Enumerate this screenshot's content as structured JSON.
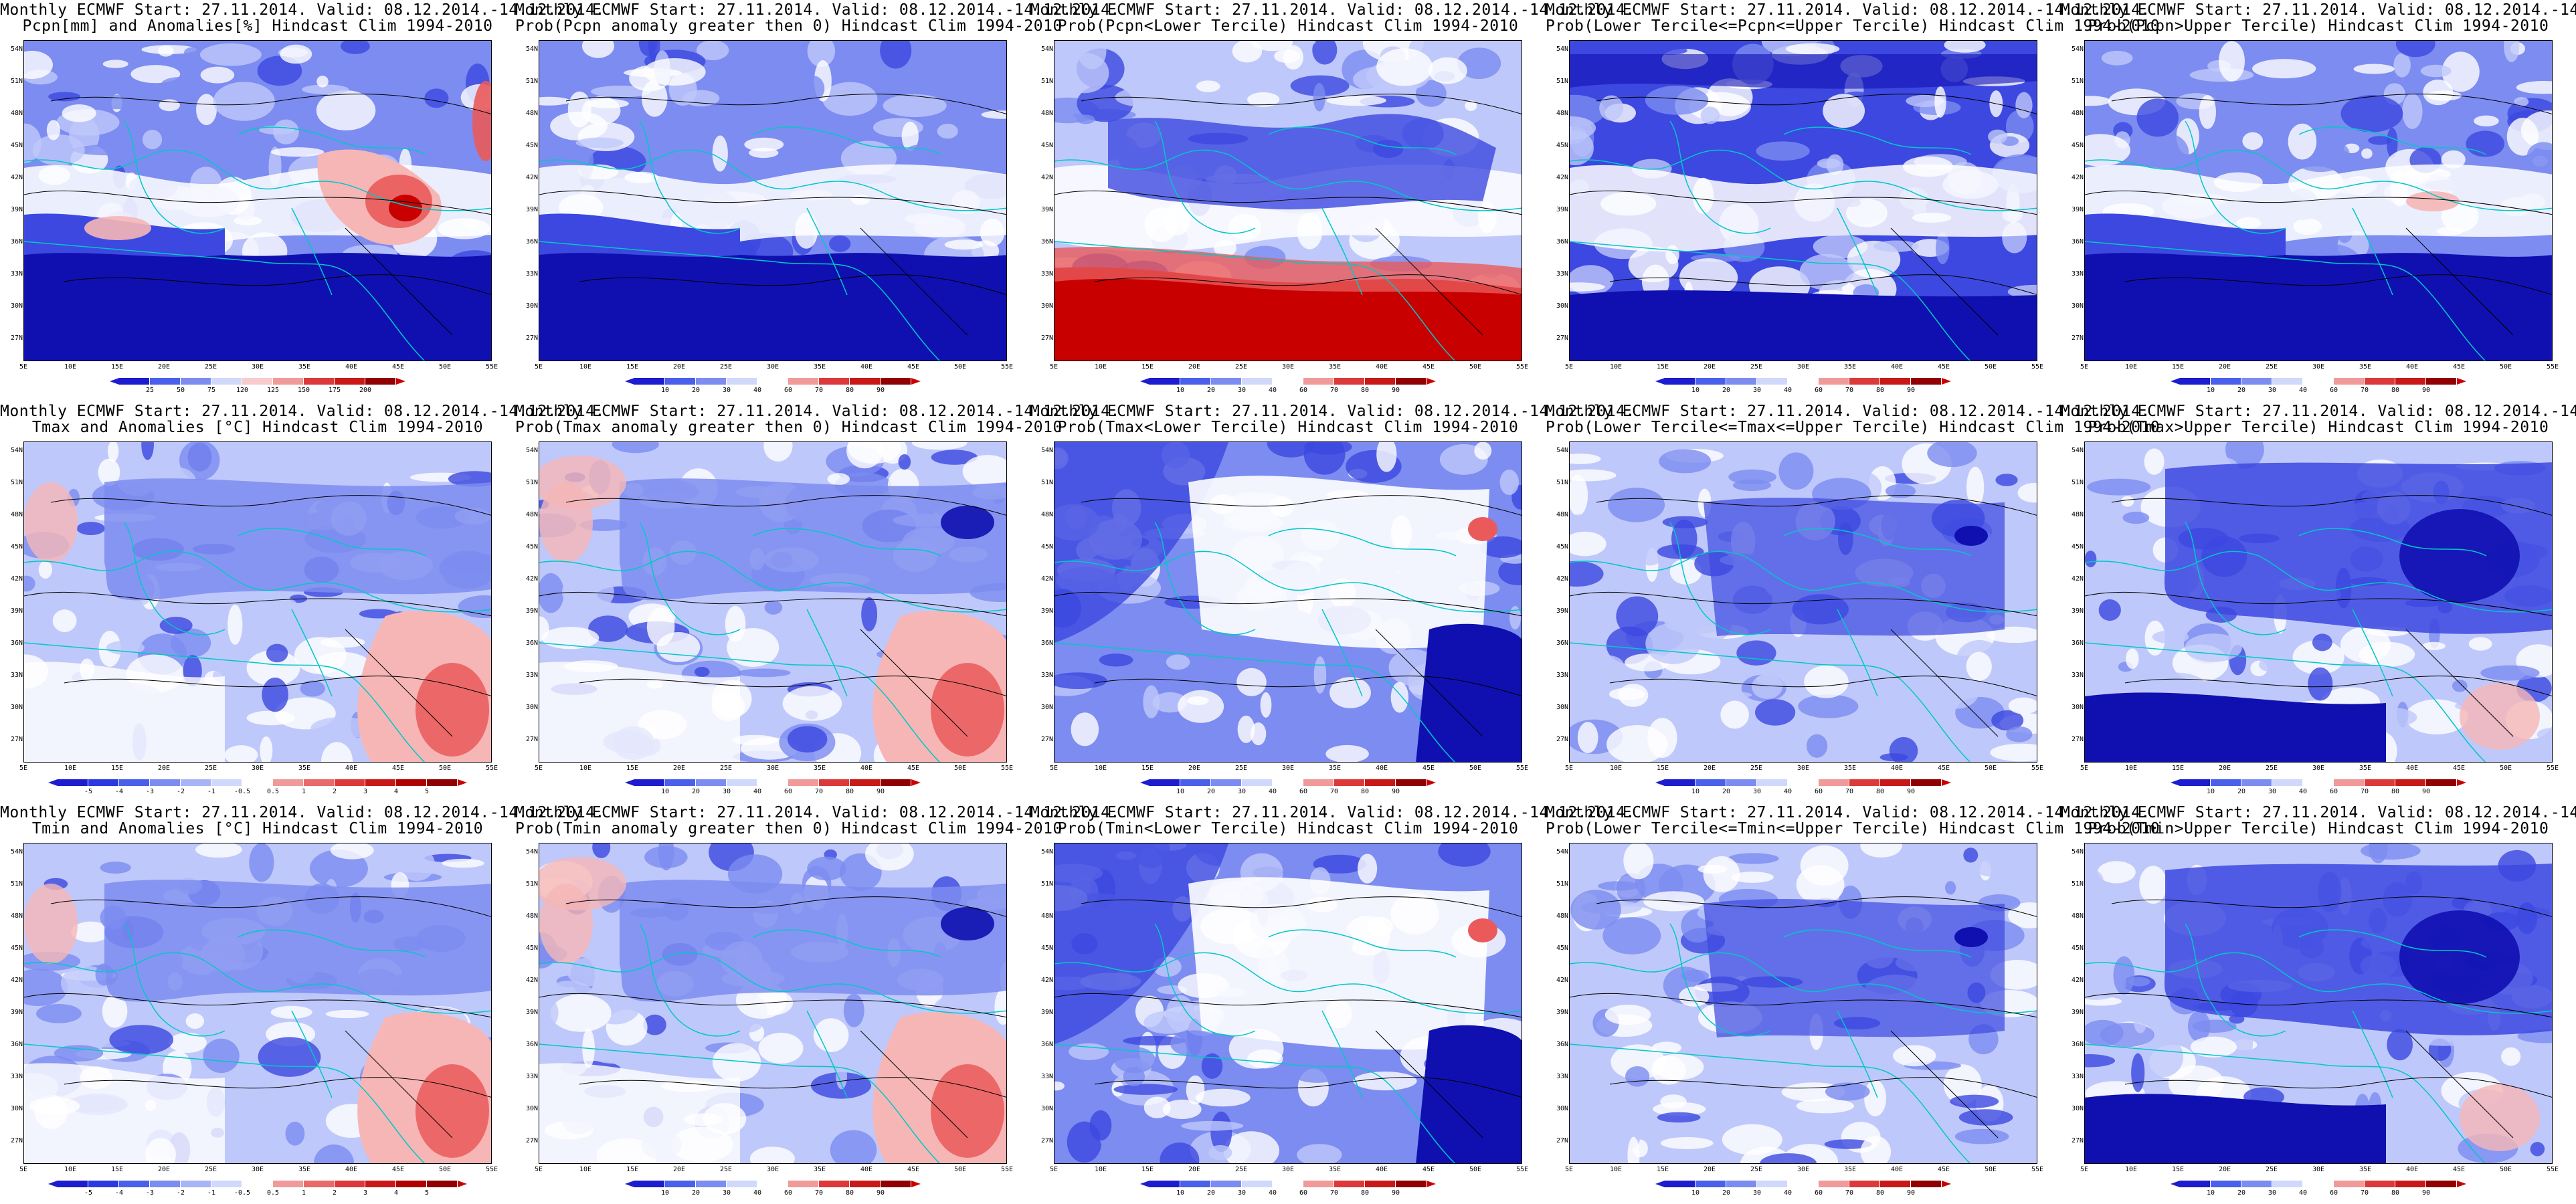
{
  "figure_title_line1": "Monthly ECMWF Start: 27.11.2014. Valid: 08.12.2014.-14.12.2014.",
  "lat_labels": [
    "54N",
    "51N",
    "48N",
    "45N",
    "42N",
    "39N",
    "36N",
    "33N",
    "30N",
    "27N"
  ],
  "lon_labels": [
    "5E",
    "10E",
    "15E",
    "20E",
    "25E",
    "30E",
    "35E",
    "40E",
    "45E",
    "50E",
    "55E"
  ],
  "colorbars": {
    "anom_pcpn": [
      "25",
      "50",
      "75",
      "120",
      "125",
      "150",
      "175",
      "200"
    ],
    "prob": [
      "10",
      "20",
      "30",
      "40",
      "60",
      "70",
      "80",
      "90"
    ],
    "anom_temp": [
      "-5",
      "-4",
      "-3",
      "-2",
      "-1",
      "-0.5",
      "0.5",
      "1",
      "2",
      "3",
      "4",
      "5"
    ]
  },
  "panels": [
    {
      "row": 0,
      "col": 0,
      "title2": "Pcpn[mm] and Anomalies[%] Hindcast Clim 1994-2010",
      "scale": "anom_pcpn",
      "pattern": "pcpn_anom"
    },
    {
      "row": 0,
      "col": 1,
      "title2": "Prob(Pcpn anomaly greater then 0) Hindcast Clim 1994-2010",
      "scale": "prob",
      "pattern": "pcpn_gt0"
    },
    {
      "row": 0,
      "col": 2,
      "title2": "Prob(Pcpn<Lower Tercile) Hindcast Clim 1994-2010",
      "scale": "prob",
      "pattern": "pcpn_lower"
    },
    {
      "row": 0,
      "col": 3,
      "title2": "Prob(Lower Tercile<=Pcpn<=Upper Tercile) Hindcast Clim 1994-2010",
      "scale": "prob",
      "pattern": "pcpn_mid"
    },
    {
      "row": 0,
      "col": 4,
      "title2": "Prob(Pcpn>Upper Tercile) Hindcast Clim 1994-2010",
      "scale": "prob",
      "pattern": "pcpn_upper"
    },
    {
      "row": 1,
      "col": 0,
      "title2": "Tmax and Anomalies [°C] Hindcast Clim 1994-2010",
      "scale": "anom_temp",
      "pattern": "tmax_anom"
    },
    {
      "row": 1,
      "col": 1,
      "title2": "Prob(Tmax anomaly greater then 0) Hindcast Clim 1994-2010",
      "scale": "prob",
      "pattern": "tmax_gt0"
    },
    {
      "row": 1,
      "col": 2,
      "title2": "Prob(Tmax<Lower Tercile) Hindcast Clim 1994-2010",
      "scale": "prob",
      "pattern": "tmax_lower"
    },
    {
      "row": 1,
      "col": 3,
      "title2": "Prob(Lower Tercile<=Tmax<=Upper Tercile) Hindcast Clim 1994-2010",
      "scale": "prob",
      "pattern": "tmax_mid"
    },
    {
      "row": 1,
      "col": 4,
      "title2": "Prob(Tmax>Upper Tercile) Hindcast Clim 1994-2010",
      "scale": "prob",
      "pattern": "tmax_upper"
    },
    {
      "row": 2,
      "col": 0,
      "title2": "Tmin and Anomalies [°C] Hindcast Clim 1994-2010",
      "scale": "anom_temp",
      "pattern": "tmin_anom"
    },
    {
      "row": 2,
      "col": 1,
      "title2": "Prob(Tmin anomaly greater then 0) Hindcast Clim 1994-2010",
      "scale": "prob",
      "pattern": "tmin_gt0"
    },
    {
      "row": 2,
      "col": 2,
      "title2": "Prob(Tmin<Lower Tercile) Hindcast Clim 1994-2010",
      "scale": "prob",
      "pattern": "tmin_lower"
    },
    {
      "row": 2,
      "col": 3,
      "title2": "Prob(Lower Tercile<=Tmin<=Upper Tercile) Hindcast Clim 1994-2010",
      "scale": "prob",
      "pattern": "tmin_mid"
    },
    {
      "row": 2,
      "col": 4,
      "title2": "Prob(Tmin>Upper Tercile) Hindcast Clim 1994-2010",
      "scale": "prob",
      "pattern": "tmin_upper"
    }
  ],
  "colors": {
    "deep_blue": "#1010b0",
    "blue": "#3c48e0",
    "mid_blue": "#7c8cf0",
    "light_blue": "#bfc8fa",
    "white": "#ffffff",
    "light_red": "#f6b6b6",
    "red": "#ea5a5a",
    "deep_red": "#c80000",
    "coast": "#00c8c8",
    "contour": "#000000"
  }
}
